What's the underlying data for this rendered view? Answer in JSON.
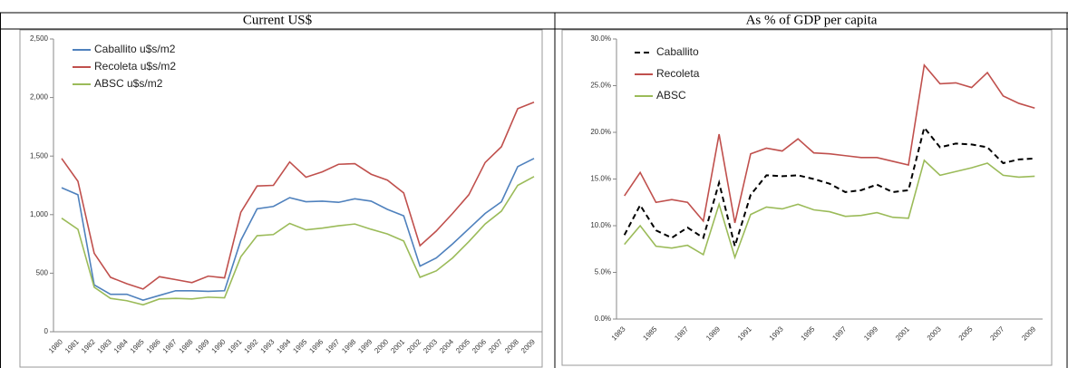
{
  "chart_data": [
    {
      "type": "line",
      "title": "Current US$",
      "categories": [
        "1980",
        "1981",
        "1982",
        "1983",
        "1984",
        "1985",
        "1986",
        "1987",
        "1988",
        "1989",
        "1990",
        "1991",
        "1992",
        "1993",
        "1994",
        "1995",
        "1996",
        "1997",
        "1998",
        "1999",
        "2000",
        "2001",
        "2002",
        "2003",
        "2004",
        "2005",
        "2006",
        "2007",
        "2008",
        "2009"
      ],
      "series": [
        {
          "name": "Caballito u$s/m2",
          "color": "#4f81bd",
          "dashed": false,
          "values": [
            1230,
            1170,
            400,
            320,
            320,
            270,
            310,
            350,
            350,
            345,
            350,
            780,
            1050,
            1070,
            1145,
            1110,
            1115,
            1105,
            1135,
            1115,
            1045,
            990,
            560,
            630,
            750,
            880,
            1010,
            1110,
            1410,
            1480
          ]
        },
        {
          "name": "Recoleta u$s/m2",
          "color": "#c0504d",
          "dashed": false,
          "values": [
            1480,
            1285,
            670,
            465,
            410,
            365,
            470,
            445,
            420,
            475,
            460,
            1020,
            1245,
            1250,
            1450,
            1320,
            1365,
            1430,
            1435,
            1345,
            1295,
            1185,
            735,
            860,
            1010,
            1170,
            1445,
            1580,
            1905,
            1960
          ]
        },
        {
          "name": "ABSC u$s/m2",
          "color": "#9bbb59",
          "dashed": false,
          "values": [
            970,
            875,
            380,
            285,
            265,
            230,
            280,
            285,
            280,
            295,
            290,
            640,
            820,
            830,
            925,
            870,
            885,
            905,
            920,
            875,
            835,
            775,
            465,
            520,
            630,
            770,
            920,
            1030,
            1250,
            1325
          ]
        }
      ],
      "ylim": [
        0,
        2500
      ],
      "yticks": [
        0,
        500,
        {
          "value": 1000,
          "label": "1,000"
        },
        {
          "value": 1500,
          "label": "1,500"
        },
        {
          "value": 2000,
          "label": "2,000"
        },
        {
          "value": 2500,
          "label": "2,500"
        }
      ],
      "legend": "upper left"
    },
    {
      "type": "line",
      "title": "As % of GDP per capita",
      "categories": [
        "1983",
        null,
        "1985",
        null,
        "1987",
        null,
        "1989",
        null,
        "1991",
        null,
        "1993",
        null,
        "1995",
        null,
        "1997",
        null,
        "1999",
        null,
        "2001",
        null,
        "2003",
        null,
        "2005",
        null,
        "2007",
        null,
        "2009"
      ],
      "series": [
        {
          "name": "Caballito",
          "color": "#000000",
          "dashed": true,
          "values": [
            9.0,
            12.2,
            9.5,
            8.7,
            9.8,
            8.7,
            14.6,
            7.8,
            13.3,
            15.4,
            15.3,
            15.4,
            15.0,
            14.5,
            13.6,
            13.8,
            14.4,
            13.6,
            13.8,
            20.5,
            18.4,
            18.8,
            18.7,
            18.4,
            16.7,
            17.1,
            17.2
          ]
        },
        {
          "name": "Recoleta",
          "color": "#c0504d",
          "dashed": false,
          "values": [
            13.2,
            15.7,
            12.5,
            12.8,
            12.5,
            10.5,
            19.8,
            10.3,
            17.7,
            18.3,
            18.0,
            19.3,
            17.8,
            17.7,
            17.5,
            17.3,
            17.3,
            16.9,
            16.5,
            27.2,
            25.2,
            25.3,
            24.8,
            26.4,
            23.9,
            23.1,
            22.6
          ]
        },
        {
          "name": "ABSC",
          "color": "#9bbb59",
          "dashed": false,
          "values": [
            8.0,
            10.0,
            7.8,
            7.6,
            7.9,
            6.9,
            12.3,
            6.6,
            11.2,
            12.0,
            11.8,
            12.3,
            11.7,
            11.5,
            11.0,
            11.1,
            11.4,
            10.9,
            10.8,
            17.0,
            15.4,
            15.8,
            16.2,
            16.7,
            15.4,
            15.2,
            15.3
          ]
        }
      ],
      "ylim": [
        0,
        30
      ],
      "yticks": [
        {
          "value": 0,
          "label": "0.0%"
        },
        {
          "value": 5,
          "label": "5.0%"
        },
        {
          "value": 10,
          "label": "10.0%"
        },
        {
          "value": 15,
          "label": "15.0%"
        },
        {
          "value": 20,
          "label": "20.0%"
        },
        {
          "value": 25,
          "label": "25.0%"
        },
        {
          "value": 30,
          "label": "30.0%"
        }
      ],
      "legend": "upper left"
    }
  ]
}
